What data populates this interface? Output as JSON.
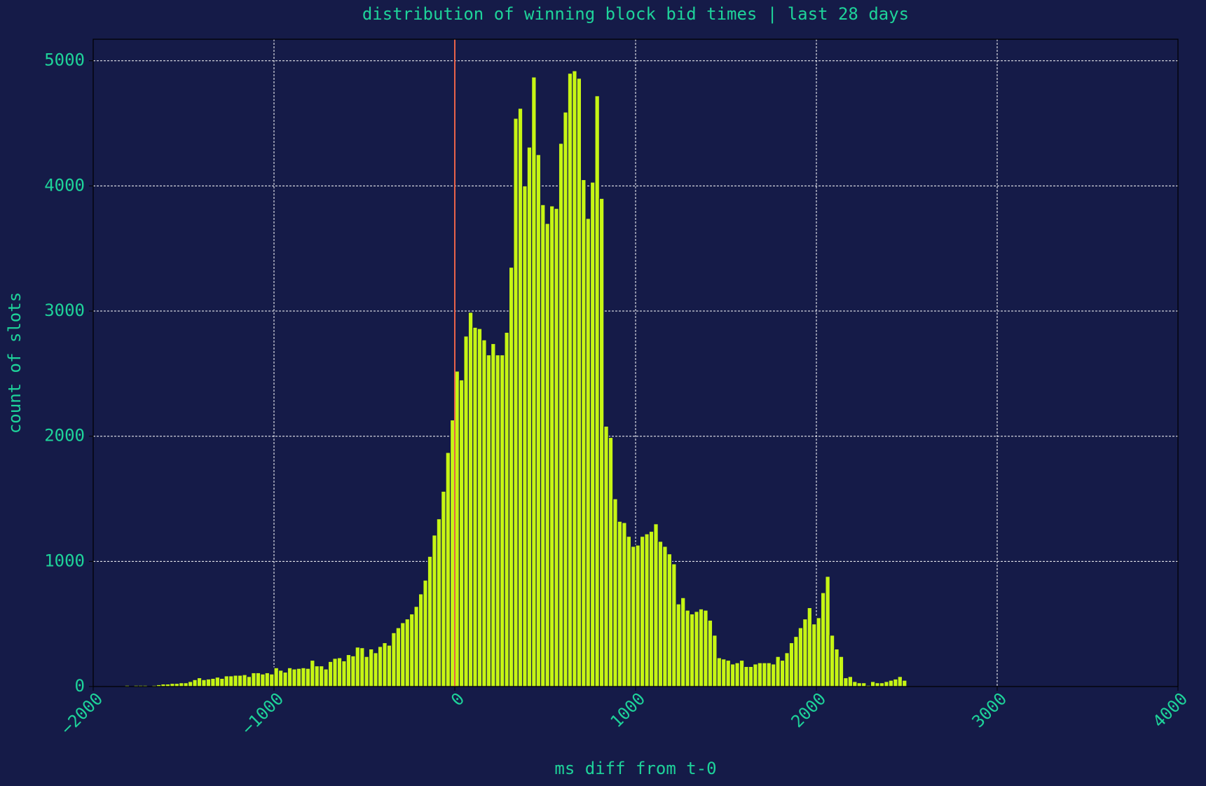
{
  "chart_data": {
    "type": "histogram",
    "title": "distribution of winning block bid times | last 28 days",
    "xlabel": "ms diff from t-0",
    "ylabel": "count of slots",
    "color": "#c6f514",
    "vlines": [
      0
    ],
    "vline_color": "#e8634a",
    "grid": true,
    "xlim": [
      -2000,
      4000
    ],
    "ylim": [
      0,
      5172
    ],
    "xticks": [
      {
        "value": -2000,
        "label": "−2000"
      },
      {
        "value": -1000,
        "label": "−1000"
      },
      0,
      1000,
      2000,
      3000,
      4000
    ],
    "yticks": [
      0,
      1000,
      2000,
      3000,
      4000,
      5000
    ],
    "bins": [
      -2000,
      -1975,
      -1950,
      -1925,
      -1900,
      -1875,
      -1850,
      -1825,
      -1800,
      -1775,
      -1750,
      -1725,
      -1700,
      -1675,
      -1650,
      -1625,
      -1600,
      -1575,
      -1550,
      -1525,
      -1500,
      -1475,
      -1450,
      -1425,
      -1400,
      -1375,
      -1350,
      -1325,
      -1300,
      -1275,
      -1250,
      -1225,
      -1200,
      -1175,
      -1150,
      -1125,
      -1100,
      -1075,
      -1050,
      -1025,
      -1000,
      -975,
      -950,
      -925,
      -900,
      -875,
      -850,
      -825,
      -800,
      -775,
      -750,
      -725,
      -700,
      -675,
      -650,
      -625,
      -600,
      -575,
      -550,
      -525,
      -500,
      -475,
      -450,
      -425,
      -400,
      -375,
      -350,
      -325,
      -300,
      -275,
      -250,
      -225,
      -200,
      -175,
      -150,
      -125,
      -100,
      -75,
      -50,
      -25,
      0,
      25,
      50,
      75,
      100,
      125,
      150,
      175,
      200,
      225,
      250,
      275,
      300,
      325,
      350,
      375,
      400,
      425,
      450,
      475,
      500,
      525,
      550,
      575,
      600,
      625,
      650,
      675,
      700,
      725,
      750,
      775,
      800,
      825,
      850,
      875,
      900,
      925,
      950,
      975,
      1000,
      1025,
      1050,
      1075,
      1100,
      1125,
      1150,
      1175,
      1200,
      1225,
      1250,
      1275,
      1300,
      1325,
      1350,
      1375,
      1400,
      1425,
      1450,
      1475,
      1500,
      1525,
      1550,
      1575,
      1600,
      1625,
      1650,
      1675,
      1700,
      1725,
      1750,
      1775,
      1800,
      1825,
      1850,
      1875,
      1900,
      1925,
      1950,
      1975,
      2000,
      2025,
      2050,
      2075,
      2100,
      2125,
      2150,
      2175,
      2200,
      2225,
      2250,
      2275,
      2300,
      2325,
      2350,
      2375,
      2400,
      2425,
      2450,
      2475,
      2500
    ],
    "counts": [
      5,
      0,
      5,
      0,
      0,
      0,
      0,
      10,
      0,
      10,
      10,
      10,
      5,
      10,
      15,
      20,
      20,
      25,
      25,
      30,
      30,
      40,
      55,
      70,
      55,
      60,
      65,
      75,
      65,
      85,
      85,
      90,
      90,
      95,
      80,
      110,
      110,
      100,
      110,
      100,
      150,
      130,
      115,
      150,
      140,
      145,
      150,
      145,
      210,
      165,
      165,
      140,
      200,
      225,
      230,
      205,
      255,
      245,
      315,
      310,
      240,
      300,
      270,
      320,
      350,
      330,
      430,
      470,
      510,
      540,
      580,
      640,
      740,
      850,
      1040,
      1210,
      1340,
      1560,
      1870,
      2130,
      2520,
      2450,
      2800,
      2990,
      2870,
      2860,
      2770,
      2650,
      2740,
      2650,
      2650,
      2830,
      3350,
      4540,
      4620,
      4000,
      4310,
      4870,
      4250,
      3850,
      3700,
      3840,
      3820,
      4340,
      4590,
      4900,
      4920,
      4860,
      4050,
      3740,
      4030,
      4720,
      3900,
      2080,
      1990,
      1500,
      1320,
      1310,
      1200,
      1120,
      1130,
      1200,
      1220,
      1240,
      1300,
      1160,
      1120,
      1060,
      980,
      660,
      710,
      610,
      580,
      600,
      620,
      610,
      530,
      410,
      230,
      220,
      210,
      180,
      190,
      210,
      160,
      160,
      180,
      190,
      190,
      190,
      180,
      240,
      210,
      270,
      350,
      400,
      470,
      540,
      630,
      500,
      550,
      750,
      880,
      410,
      300,
      240,
      70,
      80,
      40,
      30,
      30,
      10,
      40,
      30,
      30,
      40,
      50,
      60,
      80,
      50
    ]
  }
}
